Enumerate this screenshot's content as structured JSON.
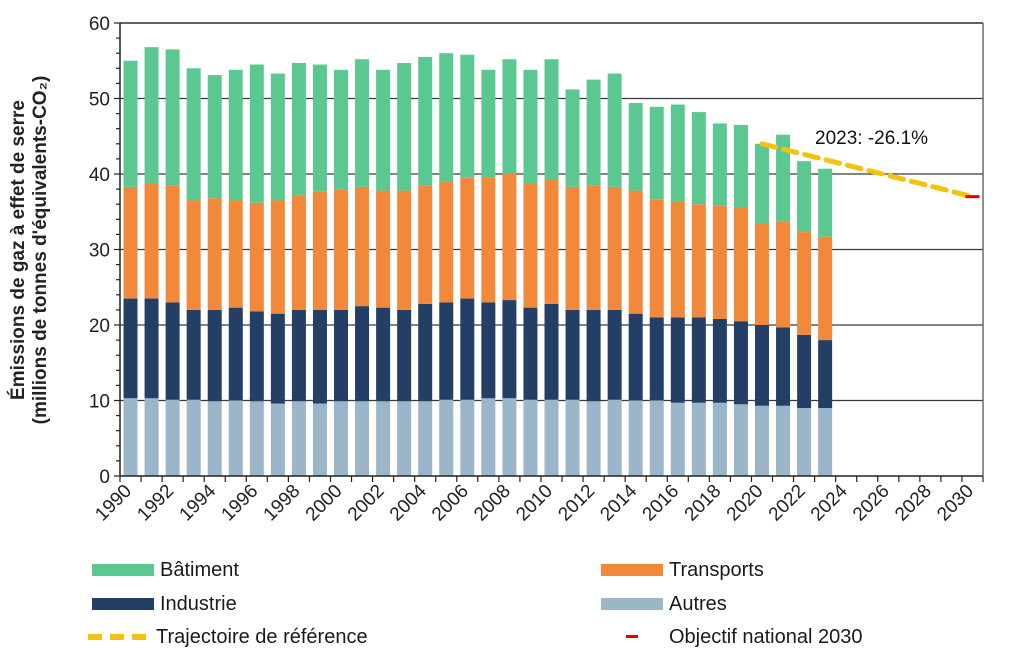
{
  "chart_data": {
    "type": "bar",
    "stacked": true,
    "title": "",
    "xlabel": "",
    "ylabel_line1": "Émissions de gaz à effet de serre",
    "ylabel_line2": "(millions de tonnes d'équivalents-CO₂)",
    "ylim": [
      0,
      60
    ],
    "yticks": [
      "0",
      "10",
      "20",
      "30",
      "40",
      "50",
      "60"
    ],
    "ytick_values": [
      0,
      10,
      20,
      30,
      40,
      50,
      60
    ],
    "y_minor_step": 2,
    "grid": "horizontal major lines",
    "x_range": [
      1990,
      2030
    ],
    "xtick_labels": [
      "1990",
      "1992",
      "1994",
      "1996",
      "1998",
      "2000",
      "2002",
      "2004",
      "2006",
      "2008",
      "2010",
      "2012",
      "2014",
      "2016",
      "2018",
      "2020",
      "2022",
      "2024",
      "2026",
      "2028",
      "2030"
    ],
    "categories": [
      "1990",
      "1991",
      "1992",
      "1993",
      "1994",
      "1995",
      "1996",
      "1997",
      "1998",
      "1999",
      "2000",
      "2001",
      "2002",
      "2003",
      "2004",
      "2005",
      "2006",
      "2007",
      "2008",
      "2009",
      "2010",
      "2011",
      "2012",
      "2013",
      "2014",
      "2015",
      "2016",
      "2017",
      "2018",
      "2019",
      "2020",
      "2021",
      "2022",
      "2023"
    ],
    "series": [
      {
        "name": "Autres",
        "color": "#9BB5C9",
        "values": [
          10.3,
          10.3,
          10.1,
          10.1,
          9.9,
          10.0,
          9.9,
          9.6,
          9.9,
          9.6,
          9.9,
          9.9,
          9.9,
          9.9,
          9.9,
          10.1,
          10.1,
          10.3,
          10.3,
          10.1,
          10.1,
          10.1,
          9.9,
          10.1,
          10.0,
          10.0,
          9.7,
          9.7,
          9.7,
          9.5,
          9.3,
          9.3,
          9.0,
          9.0
        ]
      },
      {
        "name": "Industrie",
        "color": "#243F66",
        "values": [
          13.2,
          13.2,
          12.9,
          11.9,
          12.1,
          12.3,
          11.9,
          11.9,
          12.1,
          12.4,
          12.1,
          12.6,
          12.4,
          12.1,
          12.9,
          12.9,
          13.4,
          12.7,
          13.0,
          12.2,
          12.7,
          11.9,
          12.1,
          11.9,
          11.5,
          11.0,
          11.3,
          11.3,
          11.1,
          11.0,
          10.7,
          10.4,
          9.7,
          9.0
        ]
      },
      {
        "name": "Transports",
        "color": "#F2883A",
        "values": [
          14.8,
          15.3,
          15.5,
          14.5,
          14.8,
          14.2,
          14.4,
          15.0,
          15.2,
          15.7,
          16.0,
          15.8,
          15.5,
          15.8,
          15.7,
          16.0,
          16.0,
          16.5,
          16.7,
          16.5,
          16.4,
          16.3,
          16.5,
          16.3,
          16.3,
          15.6,
          15.3,
          15.0,
          15.0,
          15.0,
          13.5,
          14.0,
          13.6,
          13.7
        ]
      },
      {
        "name": "Bâtiment",
        "color": "#5CC891",
        "values": [
          16.7,
          18.0,
          18.0,
          17.5,
          16.3,
          17.3,
          18.3,
          16.8,
          17.5,
          16.8,
          15.8,
          16.9,
          16.0,
          16.9,
          17.0,
          17.0,
          16.3,
          14.3,
          15.2,
          15.0,
          16.0,
          12.9,
          14.0,
          15.0,
          11.6,
          12.3,
          12.9,
          12.2,
          10.9,
          11.0,
          10.5,
          11.5,
          9.4,
          9.0
        ]
      }
    ],
    "totals": [
      55.0,
      56.8,
      56.5,
      54.0,
      53.1,
      53.8,
      54.5,
      53.3,
      54.7,
      54.5,
      53.8,
      55.2,
      53.8,
      54.7,
      55.5,
      56.0,
      55.8,
      53.8,
      55.2,
      53.8,
      55.2,
      51.2,
      52.5,
      53.3,
      49.4,
      48.9,
      49.2,
      48.2,
      46.7,
      46.5,
      44.0,
      45.2,
      41.7,
      40.7
    ],
    "reference_trajectory": {
      "name": "Trajectoire de référence",
      "color": "#F5C211",
      "style": "dashed",
      "points": [
        [
          2020,
          44.0
        ],
        [
          2030,
          37.0
        ]
      ]
    },
    "target": {
      "name": "Objectif national 2030",
      "color": "#E00000",
      "year": 2030,
      "value": 37.0
    },
    "annotations": [
      {
        "text": "2023: -26.1%",
        "year": 2026,
        "value": 45.4
      }
    ],
    "legend_position": "bottom"
  },
  "legend": {
    "items": [
      {
        "label": "Bâtiment",
        "color": "#5CC891",
        "kind": "box"
      },
      {
        "label": "Transports",
        "color": "#F2883A",
        "kind": "box"
      },
      {
        "label": "Industrie",
        "color": "#243F66",
        "kind": "box"
      },
      {
        "label": "Autres",
        "color": "#9BB5C9",
        "kind": "box"
      },
      {
        "label": "Trajectoire de référence",
        "color": "#F5C211",
        "kind": "dash"
      },
      {
        "label": "Objectif national 2030",
        "color": "#E00000",
        "kind": "mark"
      }
    ]
  }
}
